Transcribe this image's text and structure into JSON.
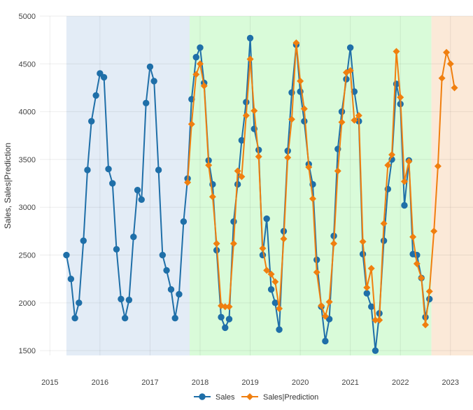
{
  "chart_data": {
    "type": "line",
    "ylabel": "Sales, Sales|Prediction",
    "xlabel": "",
    "xlim": [
      2014.8,
      2023.45
    ],
    "ylim": [
      1450,
      5000
    ],
    "x_ticks": [
      "2015",
      "2016",
      "2017",
      "2018",
      "2019",
      "2020",
      "2021",
      "2022",
      "2023"
    ],
    "y_ticks": [
      "1500",
      "2000",
      "2500",
      "3000",
      "3500",
      "4000",
      "4500",
      "5000"
    ],
    "grid": true,
    "legend_position": "bottom-center",
    "regions": [
      {
        "from": 2015.33,
        "to": 2017.79,
        "color": "#e3ecf6"
      },
      {
        "from": 2017.79,
        "to": 2022.62,
        "color": "#d9fbd9"
      },
      {
        "from": 2022.62,
        "to": 2023.45,
        "color": "#fbe9d8"
      }
    ],
    "series": [
      {
        "name": "Sales",
        "color": "#1f6fa8",
        "marker": "circle",
        "x": [
          2015.33,
          2015.42,
          2015.5,
          2015.58,
          2015.67,
          2015.75,
          2015.83,
          2015.92,
          2016.0,
          2016.08,
          2016.17,
          2016.25,
          2016.33,
          2016.42,
          2016.5,
          2016.58,
          2016.67,
          2016.75,
          2016.83,
          2016.92,
          2017.0,
          2017.08,
          2017.17,
          2017.25,
          2017.33,
          2017.42,
          2017.5,
          2017.58,
          2017.67,
          2017.75,
          2017.83,
          2017.92,
          2018.0,
          2018.08,
          2018.17,
          2018.25,
          2018.33,
          2018.42,
          2018.5,
          2018.58,
          2018.67,
          2018.75,
          2018.83,
          2018.92,
          2019.0,
          2019.08,
          2019.17,
          2019.25,
          2019.33,
          2019.42,
          2019.5,
          2019.58,
          2019.67,
          2019.75,
          2019.83,
          2019.92,
          2020.0,
          2020.08,
          2020.17,
          2020.25,
          2020.33,
          2020.42,
          2020.5,
          2020.58,
          2020.67,
          2020.75,
          2020.83,
          2020.92,
          2021.0,
          2021.08,
          2021.17,
          2021.25,
          2021.33,
          2021.42,
          2021.5,
          2021.58,
          2021.67,
          2021.75,
          2021.83,
          2021.92,
          2022.0,
          2022.08,
          2022.17,
          2022.25,
          2022.33,
          2022.42,
          2022.5,
          2022.58
        ],
        "values": [
          2500,
          2250,
          1840,
          2000,
          2650,
          3390,
          3900,
          4170,
          4400,
          4360,
          3400,
          3250,
          2560,
          2040,
          1840,
          2030,
          2690,
          3180,
          3080,
          4090,
          4470,
          4320,
          3390,
          2500,
          2340,
          2140,
          1840,
          2090,
          2850,
          3300,
          4130,
          4570,
          4670,
          4300,
          3490,
          3240,
          2550,
          1850,
          1740,
          1830,
          2850,
          3240,
          3700,
          4100,
          4770,
          3820,
          3600,
          2500,
          2880,
          2140,
          2000,
          1720,
          2750,
          3590,
          4200,
          4700,
          4210,
          3900,
          3450,
          3240,
          2450,
          1960,
          1600,
          1830,
          2700,
          3610,
          4000,
          4340,
          4670,
          4210,
          3900,
          2510,
          2100,
          1960,
          1500,
          1890,
          2650,
          3190,
          3500,
          4290,
          4080,
          3020,
          3490,
          2510,
          2500,
          2260,
          1850,
          2040
        ]
      },
      {
        "name": "Sales|Prediction",
        "color": "#f07f0f",
        "marker": "diamond",
        "x": [
          2017.75,
          2017.83,
          2017.92,
          2018.0,
          2018.08,
          2018.17,
          2018.25,
          2018.33,
          2018.42,
          2018.5,
          2018.58,
          2018.67,
          2018.75,
          2018.83,
          2018.92,
          2019.0,
          2019.08,
          2019.17,
          2019.25,
          2019.33,
          2019.42,
          2019.5,
          2019.58,
          2019.67,
          2019.75,
          2019.83,
          2019.92,
          2020.0,
          2020.08,
          2020.17,
          2020.25,
          2020.33,
          2020.42,
          2020.5,
          2020.58,
          2020.67,
          2020.75,
          2020.83,
          2020.92,
          2021.0,
          2021.08,
          2021.17,
          2021.25,
          2021.33,
          2021.42,
          2021.5,
          2021.58,
          2021.67,
          2021.75,
          2021.83,
          2021.92,
          2022.0,
          2022.08,
          2022.17,
          2022.25,
          2022.33,
          2022.42,
          2022.5,
          2022.58,
          2022.67,
          2022.75,
          2022.83,
          2022.92,
          2023.0,
          2023.08
        ],
        "values": [
          3260,
          3870,
          4390,
          4500,
          4270,
          3440,
          3110,
          2620,
          1970,
          1960,
          1960,
          2620,
          3380,
          3320,
          3960,
          4550,
          4010,
          3530,
          2570,
          2340,
          2300,
          2220,
          1940,
          2670,
          3520,
          3920,
          4720,
          4320,
          4030,
          3420,
          3090,
          2320,
          1970,
          1860,
          2010,
          2620,
          3380,
          3890,
          4410,
          4430,
          3910,
          3960,
          2640,
          2160,
          2360,
          1820,
          1820,
          2830,
          3440,
          3550,
          4630,
          4150,
          3270,
          3480,
          2690,
          2410,
          2260,
          1770,
          2120,
          2750,
          3430,
          4350,
          4620,
          4500,
          4250
        ]
      }
    ]
  }
}
